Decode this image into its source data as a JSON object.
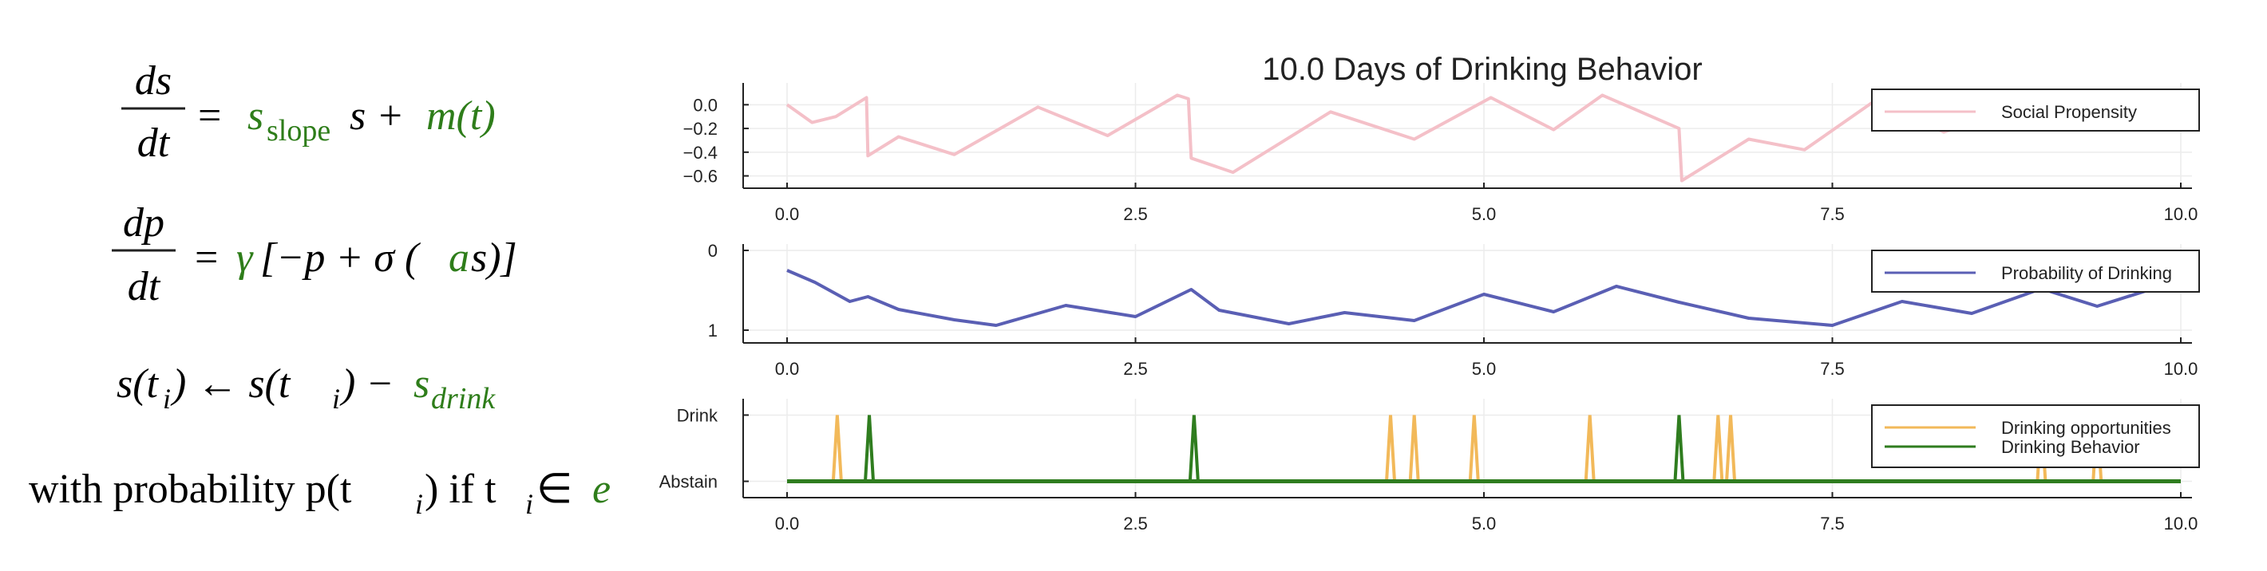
{
  "equations": {
    "eq1": {
      "lhs_num": "ds",
      "lhs_den": "dt",
      "eq": "=",
      "param_var": "s",
      "param_sub": "slope",
      "mid": "s +",
      "term": "m(t)"
    },
    "eq2": {
      "lhs_num": "dp",
      "lhs_den": "dt",
      "eq": "=",
      "gamma": "γ",
      "mid_a": "[−p + σ (",
      "a": "a",
      "mid_b": "s)]"
    },
    "eq3": {
      "lhs": "s(t",
      "lhs_sub": "i",
      "mid": ") ← s(t",
      "mid_sub": "i",
      "end": ") −",
      "param_var": "s",
      "param_sub": "drink"
    },
    "eq4": {
      "pre": "with probability p(t",
      "pre_sub": "i",
      "mid": ") if t",
      "mid_sub": "i",
      "in": " ∈",
      "e": "e"
    }
  },
  "colors": {
    "green": "#2e7d1a",
    "pink": "#f4c0c8",
    "blue": "#5a5fb4",
    "orange": "#f2b95a",
    "drink_green": "#2f7d1f"
  },
  "chart_data": [
    {
      "type": "line",
      "title": "10.0 Days of Drinking Behavior",
      "xlim": [
        0,
        10
      ],
      "ylim": [
        -0.65,
        0.13
      ],
      "xticks": [
        "0.0",
        "2.5",
        "5.0",
        "7.5",
        "10.0"
      ],
      "yticks": [
        "0.0",
        "−0.2",
        "−0.4",
        "−0.6"
      ],
      "legend_position": "top-right",
      "grid": true,
      "series": [
        {
          "name": "Social Propensity",
          "color": "#f4c0c8",
          "points": [
            [
              0,
              0.0
            ],
            [
              0.18,
              -0.15
            ],
            [
              0.35,
              -0.1
            ],
            [
              0.57,
              0.06
            ],
            [
              0.58,
              -0.43
            ],
            [
              0.8,
              -0.27
            ],
            [
              1.2,
              -0.42
            ],
            [
              1.8,
              -0.02
            ],
            [
              2.3,
              -0.26
            ],
            [
              2.8,
              0.08
            ],
            [
              2.88,
              0.05
            ],
            [
              2.9,
              -0.45
            ],
            [
              3.2,
              -0.57
            ],
            [
              3.9,
              -0.06
            ],
            [
              4.5,
              -0.29
            ],
            [
              5.05,
              0.06
            ],
            [
              5.5,
              -0.21
            ],
            [
              5.85,
              0.08
            ],
            [
              6.4,
              -0.2
            ],
            [
              6.42,
              -0.64
            ],
            [
              6.9,
              -0.29
            ],
            [
              7.3,
              -0.38
            ],
            [
              7.8,
              0.03
            ],
            [
              8.3,
              -0.23
            ],
            [
              8.8,
              -0.05
            ],
            [
              9.3,
              -0.19
            ],
            [
              9.8,
              -0.03
            ],
            [
              10.0,
              -0.1
            ]
          ]
        }
      ]
    },
    {
      "type": "line",
      "xlim": [
        0,
        10
      ],
      "ylim": [
        -0.08,
        1.0
      ],
      "xticks": [
        "0.0",
        "2.5",
        "5.0",
        "7.5",
        "10.0"
      ],
      "yticks": [
        "0",
        "1"
      ],
      "legend_position": "top-right",
      "grid": true,
      "series": [
        {
          "name": "Probability of Drinking",
          "color": "#5a5fb4",
          "points": [
            [
              0,
              0.75
            ],
            [
              0.2,
              0.6
            ],
            [
              0.45,
              0.36
            ],
            [
              0.58,
              0.42
            ],
            [
              0.8,
              0.26
            ],
            [
              1.2,
              0.13
            ],
            [
              1.5,
              0.06
            ],
            [
              2.0,
              0.31
            ],
            [
              2.5,
              0.17
            ],
            [
              2.9,
              0.51
            ],
            [
              3.1,
              0.25
            ],
            [
              3.6,
              0.08
            ],
            [
              4.0,
              0.22
            ],
            [
              4.5,
              0.12
            ],
            [
              5.0,
              0.45
            ],
            [
              5.5,
              0.23
            ],
            [
              5.95,
              0.55
            ],
            [
              6.4,
              0.35
            ],
            [
              6.9,
              0.15
            ],
            [
              7.5,
              0.06
            ],
            [
              8.0,
              0.36
            ],
            [
              8.5,
              0.21
            ],
            [
              9.0,
              0.52
            ],
            [
              9.4,
              0.3
            ],
            [
              10.0,
              0.63
            ]
          ]
        }
      ]
    },
    {
      "type": "line",
      "xlim": [
        0,
        10
      ],
      "ylim": [
        -0.15,
        1.15
      ],
      "xticks": [
        "0.0",
        "2.5",
        "5.0",
        "7.5",
        "10.0"
      ],
      "yticks": [
        "Drink",
        "Abstain"
      ],
      "legend_position": "top-right",
      "grid": true,
      "series": [
        {
          "name": "Drinking opportunities",
          "color": "#f2b95a",
          "events": [
            0.36,
            4.33,
            4.5,
            4.93,
            5.76,
            6.68,
            6.77,
            9.0,
            9.4
          ]
        },
        {
          "name": "Drinking Behavior",
          "color": "#2f7d1f",
          "events": [
            0.59,
            2.92,
            6.4
          ]
        }
      ]
    }
  ]
}
